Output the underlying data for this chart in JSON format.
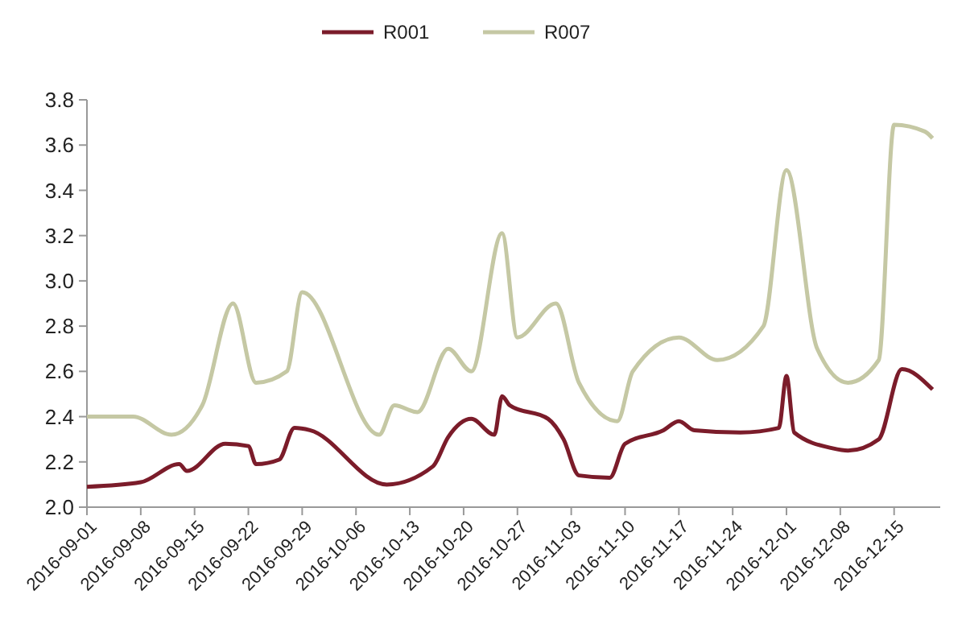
{
  "chart_data": {
    "type": "line",
    "legend": "top",
    "grid": false,
    "marker": "none",
    "line_style": "solid",
    "xlim": [
      "2016-09-01",
      "2016-12-21"
    ],
    "xticks": [
      "2016-09-01",
      "2016-09-08",
      "2016-09-15",
      "2016-09-22",
      "2016-09-29",
      "2016-10-06",
      "2016-10-13",
      "2016-10-20",
      "2016-10-27",
      "2016-11-03",
      "2016-11-10",
      "2016-11-17",
      "2016-11-24",
      "2016-12-01",
      "2016-12-08",
      "2016-12-15"
    ],
    "ylim": [
      2.0,
      3.8
    ],
    "yticks": [
      {
        "value": 2,
        "label": "2.0"
      },
      2.2,
      2.4,
      2.6,
      2.8,
      {
        "value": 3,
        "label": "3.0"
      },
      3.2,
      3.4,
      3.6,
      3.8
    ],
    "series": [
      {
        "name": "R001",
        "color": "#7b1c2a",
        "x": [
          "2016-09-01",
          "2016-09-08",
          "2016-09-13",
          "2016-09-14",
          "2016-09-19",
          "2016-09-22",
          "2016-09-23",
          "2016-09-26",
          "2016-09-28",
          "2016-09-30",
          "2016-10-10",
          "2016-10-16",
          "2016-10-18",
          "2016-10-21",
          "2016-10-24",
          "2016-10-25",
          "2016-10-26",
          "2016-10-31",
          "2016-11-02",
          "2016-11-04",
          "2016-11-08",
          "2016-11-10",
          "2016-11-15",
          "2016-11-17",
          "2016-11-19",
          "2016-11-25",
          "2016-11-30",
          "2016-12-01",
          "2016-12-02",
          "2016-12-07",
          "2016-12-09",
          "2016-12-13",
          "2016-12-16",
          "2016-12-20"
        ],
        "values": [
          2.09,
          2.11,
          2.19,
          2.16,
          2.28,
          2.27,
          2.19,
          2.21,
          2.35,
          2.34,
          2.1,
          2.18,
          2.31,
          2.39,
          2.32,
          2.49,
          2.45,
          2.39,
          2.3,
          2.14,
          2.13,
          2.28,
          2.34,
          2.38,
          2.34,
          2.33,
          2.35,
          2.58,
          2.33,
          2.26,
          2.25,
          2.3,
          2.61,
          2.52
        ]
      },
      {
        "name": "R007",
        "color": "#c5c8a4",
        "x": [
          "2016-09-01",
          "2016-09-07",
          "2016-09-12",
          "2016-09-16",
          "2016-09-20",
          "2016-09-23",
          "2016-09-27",
          "2016-09-29",
          "2016-10-09",
          "2016-10-11",
          "2016-10-14",
          "2016-10-18",
          "2016-10-21",
          "2016-10-25",
          "2016-10-27",
          "2016-11-01",
          "2016-11-04",
          "2016-11-09",
          "2016-11-11",
          "2016-11-17",
          "2016-11-22",
          "2016-11-28",
          "2016-12-01",
          "2016-12-05",
          "2016-12-09",
          "2016-12-13",
          "2016-12-15",
          "2016-12-19",
          "2016-12-20"
        ],
        "values": [
          2.4,
          2.4,
          2.32,
          2.45,
          2.9,
          2.55,
          2.6,
          2.95,
          2.32,
          2.45,
          2.42,
          2.7,
          2.6,
          3.21,
          2.75,
          2.9,
          2.55,
          2.38,
          2.6,
          2.75,
          2.65,
          2.8,
          3.49,
          2.7,
          2.55,
          2.65,
          3.69,
          3.66,
          3.63
        ]
      }
    ]
  }
}
